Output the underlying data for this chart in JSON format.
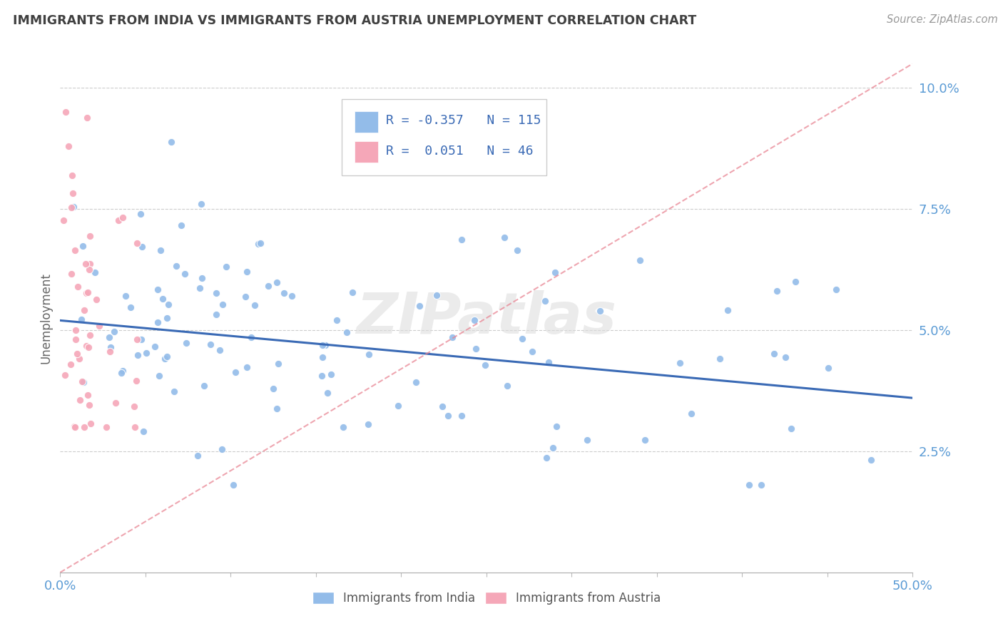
{
  "title": "IMMIGRANTS FROM INDIA VS IMMIGRANTS FROM AUSTRIA UNEMPLOYMENT CORRELATION CHART",
  "source_text": "Source: ZipAtlas.com",
  "ylabel": "Unemployment",
  "xlim": [
    0,
    0.5
  ],
  "ylim": [
    0,
    0.105
  ],
  "ytick_positions": [
    0.025,
    0.05,
    0.075,
    0.1
  ],
  "ytick_labels": [
    "2.5%",
    "5.0%",
    "7.5%",
    "10.0%"
  ],
  "xtick_positions": [
    0.0,
    0.05,
    0.1,
    0.15,
    0.2,
    0.25,
    0.3,
    0.35,
    0.4,
    0.45,
    0.5
  ],
  "xtick_labels": [
    "0.0%",
    "",
    "",
    "",
    "",
    "",
    "",
    "",
    "",
    "",
    "50.0%"
  ],
  "legend_india": "Immigrants from India",
  "legend_austria": "Immigrants from Austria",
  "R_india": -0.357,
  "N_india": 115,
  "R_austria": 0.051,
  "N_austria": 46,
  "india_color": "#93bce9",
  "austria_color": "#f5a7b8",
  "india_line_color": "#3a6ab5",
  "austria_line_color": "#e8808f",
  "background_color": "#ffffff",
  "grid_color": "#cccccc",
  "axis_label_color": "#5b9bd5",
  "title_color": "#404040",
  "watermark": "ZIPatlas",
  "india_line_x0": 0.0,
  "india_line_y0": 0.052,
  "india_line_x1": 0.5,
  "india_line_y1": 0.036,
  "austria_line_x0": 0.0,
  "austria_line_y0": 0.0,
  "austria_line_x1": 0.5,
  "austria_line_y1": 0.105
}
